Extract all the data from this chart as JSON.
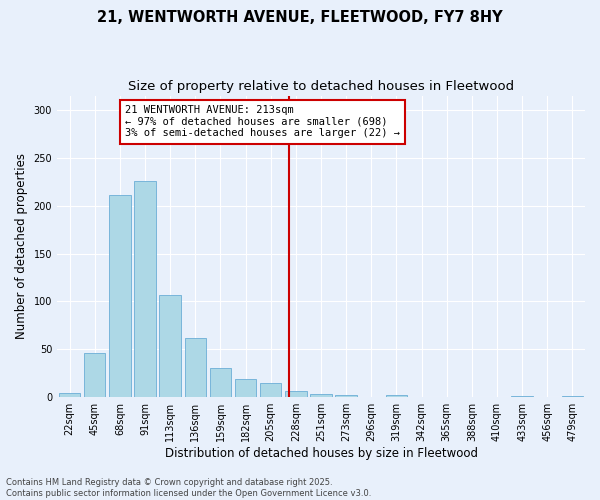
{
  "title": "21, WENTWORTH AVENUE, FLEETWOOD, FY7 8HY",
  "subtitle": "Size of property relative to detached houses in Fleetwood",
  "xlabel": "Distribution of detached houses by size in Fleetwood",
  "ylabel": "Number of detached properties",
  "bar_values": [
    4,
    46,
    211,
    226,
    107,
    62,
    30,
    19,
    15,
    6,
    3,
    2,
    0,
    2,
    0,
    0,
    0,
    0,
    1,
    0,
    1
  ],
  "bin_labels": [
    "22sqm",
    "45sqm",
    "68sqm",
    "91sqm",
    "113sqm",
    "136sqm",
    "159sqm",
    "182sqm",
    "205sqm",
    "228sqm",
    "251sqm",
    "273sqm",
    "296sqm",
    "319sqm",
    "342sqm",
    "365sqm",
    "388sqm",
    "410sqm",
    "433sqm",
    "456sqm",
    "479sqm"
  ],
  "bar_color": "#add8e6",
  "bar_edge_color": "#6baed6",
  "bg_color": "#e8f0fb",
  "grid_color": "#ffffff",
  "vline_x": 8.72,
  "vline_color": "#cc0000",
  "annotation_text": "21 WENTWORTH AVENUE: 213sqm\n← 97% of detached houses are smaller (698)\n3% of semi-detached houses are larger (22) →",
  "annotation_box_color": "#ffffff",
  "annotation_box_edge": "#cc0000",
  "ylim": [
    0,
    315
  ],
  "yticks": [
    0,
    50,
    100,
    150,
    200,
    250,
    300
  ],
  "footer_text": "Contains HM Land Registry data © Crown copyright and database right 2025.\nContains public sector information licensed under the Open Government Licence v3.0.",
  "title_fontsize": 10.5,
  "subtitle_fontsize": 9.5,
  "xlabel_fontsize": 8.5,
  "ylabel_fontsize": 8.5,
  "tick_fontsize": 7,
  "annotation_fontsize": 7.5,
  "footer_fontsize": 6
}
